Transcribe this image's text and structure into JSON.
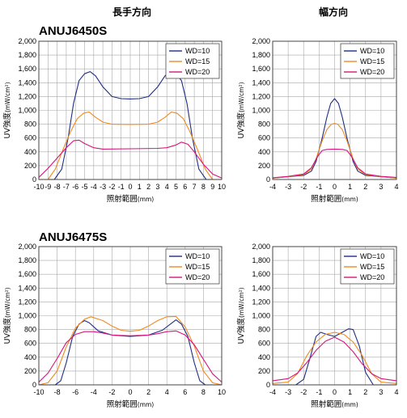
{
  "headers": {
    "long": "長手方向",
    "width": "幅方向"
  },
  "colors": {
    "WD10": "#1f2d86",
    "WD15": "#f08a1e",
    "WD20": "#d6157d",
    "grid": "#a8a8a8"
  },
  "common": {
    "ylabel_main": "UV強度",
    "ylabel_unit": "(mW/cm²)",
    "xlabel_main": "照射範囲",
    "xlabel_unit": "(mm)",
    "yticks": [
      "0",
      "200",
      "400",
      "600",
      "800",
      "1,000",
      "1,200",
      "1,400",
      "1,600",
      "1,800",
      "2,000"
    ]
  },
  "chart_data": [
    {
      "type": "line",
      "group": "ANUJ6450S",
      "title": "ANUJ6450S",
      "direction": "長手方向",
      "xlim": [
        -10,
        10
      ],
      "ylim": [
        0,
        2000
      ],
      "grid": true,
      "legend": "top-right",
      "xticks": [
        "-10",
        "-9",
        "-8",
        "-7",
        "-6",
        "-5",
        "-4",
        "-3",
        "-2",
        "-1",
        "0",
        "1",
        "2",
        "3",
        "4",
        "5",
        "6",
        "7",
        "8",
        "9",
        "10"
      ],
      "xtick_values": [
        -10,
        -9,
        -8,
        -7,
        -6,
        -5,
        -4,
        -3,
        -2,
        -1,
        0,
        1,
        2,
        3,
        4,
        5,
        6,
        7,
        8,
        9,
        10
      ],
      "series": [
        {
          "name": "WD=10",
          "color_key": "WD10",
          "points": [
            [
              -10,
              0
            ],
            [
              -8.3,
              0
            ],
            [
              -7.5,
              150
            ],
            [
              -6.8,
              600
            ],
            [
              -6.2,
              1100
            ],
            [
              -5.6,
              1430
            ],
            [
              -5,
              1530
            ],
            [
              -4.4,
              1560
            ],
            [
              -3.8,
              1500
            ],
            [
              -3,
              1340
            ],
            [
              -2,
              1200
            ],
            [
              -1,
              1170
            ],
            [
              0,
              1165
            ],
            [
              1,
              1170
            ],
            [
              2,
              1200
            ],
            [
              3,
              1340
            ],
            [
              3.8,
              1500
            ],
            [
              4.4,
              1560
            ],
            [
              5,
              1530
            ],
            [
              5.6,
              1430
            ],
            [
              6.2,
              1100
            ],
            [
              6.8,
              600
            ],
            [
              7.5,
              150
            ],
            [
              8.3,
              0
            ],
            [
              10,
              0
            ]
          ]
        },
        {
          "name": "WD=15",
          "color_key": "WD15",
          "points": [
            [
              -10,
              0
            ],
            [
              -9,
              0
            ],
            [
              -8.2,
              150
            ],
            [
              -7.3,
              450
            ],
            [
              -6.5,
              700
            ],
            [
              -5.8,
              880
            ],
            [
              -5.1,
              960
            ],
            [
              -4.5,
              975
            ],
            [
              -3.8,
              900
            ],
            [
              -3,
              830
            ],
            [
              -2,
              800
            ],
            [
              0,
              795
            ],
            [
              2,
              800
            ],
            [
              3,
              830
            ],
            [
              3.8,
              900
            ],
            [
              4.5,
              975
            ],
            [
              5.1,
              960
            ],
            [
              5.8,
              880
            ],
            [
              6.5,
              700
            ],
            [
              7.3,
              450
            ],
            [
              8.2,
              150
            ],
            [
              9,
              0
            ],
            [
              10,
              0
            ]
          ]
        },
        {
          "name": "WD=20",
          "color_key": "WD20",
          "points": [
            [
              -10,
              30
            ],
            [
              -9,
              160
            ],
            [
              -8,
              310
            ],
            [
              -7,
              460
            ],
            [
              -6.2,
              560
            ],
            [
              -5.6,
              570
            ],
            [
              -5,
              520
            ],
            [
              -4,
              460
            ],
            [
              -3,
              440
            ],
            [
              0,
              445
            ],
            [
              3,
              450
            ],
            [
              4,
              460
            ],
            [
              5,
              500
            ],
            [
              5.6,
              540
            ],
            [
              6.3,
              510
            ],
            [
              7,
              400
            ],
            [
              8,
              220
            ],
            [
              9,
              80
            ],
            [
              10,
              20
            ]
          ]
        }
      ]
    },
    {
      "type": "line",
      "group": "ANUJ6450S",
      "title": "",
      "direction": "幅方向",
      "xlim": [
        -4,
        4
      ],
      "ylim": [
        0,
        2000
      ],
      "grid": true,
      "legend": "top-right",
      "xticks": [
        "-4",
        "-3",
        "-2",
        "-1",
        "0",
        "1",
        "2",
        "3",
        "4"
      ],
      "xtick_values": [
        -4,
        -3,
        -2,
        -1,
        0,
        1,
        2,
        3,
        4
      ],
      "series": [
        {
          "name": "WD=10",
          "color_key": "WD10",
          "points": [
            [
              -4,
              20
            ],
            [
              -3,
              40
            ],
            [
              -2,
              60
            ],
            [
              -1.5,
              120
            ],
            [
              -1.2,
              260
            ],
            [
              -0.8,
              600
            ],
            [
              -0.5,
              900
            ],
            [
              -0.25,
              1100
            ],
            [
              0,
              1170
            ],
            [
              0.25,
              1100
            ],
            [
              0.5,
              900
            ],
            [
              0.8,
              600
            ],
            [
              1.2,
              260
            ],
            [
              1.5,
              120
            ],
            [
              2,
              60
            ],
            [
              3,
              40
            ],
            [
              4,
              20
            ]
          ]
        },
        {
          "name": "WD=15",
          "color_key": "WD15",
          "points": [
            [
              -4,
              20
            ],
            [
              -3,
              40
            ],
            [
              -2,
              70
            ],
            [
              -1.5,
              150
            ],
            [
              -1.2,
              300
            ],
            [
              -0.8,
              560
            ],
            [
              -0.5,
              720
            ],
            [
              -0.2,
              800
            ],
            [
              0,
              810
            ],
            [
              0.2,
              800
            ],
            [
              0.5,
              720
            ],
            [
              0.8,
              560
            ],
            [
              1.2,
              300
            ],
            [
              1.5,
              150
            ],
            [
              2,
              70
            ],
            [
              3,
              40
            ],
            [
              4,
              20
            ]
          ]
        },
        {
          "name": "WD=20",
          "color_key": "WD20",
          "points": [
            [
              -4,
              25
            ],
            [
              -3,
              45
            ],
            [
              -2,
              80
            ],
            [
              -1.5,
              170
            ],
            [
              -1.1,
              330
            ],
            [
              -0.8,
              420
            ],
            [
              -0.5,
              435
            ],
            [
              0,
              440
            ],
            [
              0.5,
              435
            ],
            [
              0.8,
              420
            ],
            [
              1.1,
              330
            ],
            [
              1.5,
              170
            ],
            [
              2,
              80
            ],
            [
              3,
              45
            ],
            [
              4,
              30
            ]
          ]
        }
      ]
    },
    {
      "type": "line",
      "group": "ANUJ6475S",
      "title": "ANUJ6475S",
      "direction": "長手方向",
      "xlim": [
        -10,
        10
      ],
      "ylim": [
        0,
        2000
      ],
      "grid": true,
      "legend": "top-right",
      "xticks": [
        "-10",
        "-8",
        "-6",
        "-4",
        "-2",
        "0",
        "2",
        "4",
        "6",
        "8",
        "10"
      ],
      "xtick_values": [
        -10,
        -8,
        -6,
        -4,
        -2,
        0,
        2,
        4,
        6,
        8,
        10
      ],
      "series": [
        {
          "name": "WD=10",
          "color_key": "WD10",
          "points": [
            [
              -10,
              0
            ],
            [
              -8.2,
              0
            ],
            [
              -7.6,
              60
            ],
            [
              -7,
              320
            ],
            [
              -6.3,
              700
            ],
            [
              -5.6,
              880
            ],
            [
              -5,
              930
            ],
            [
              -4.5,
              900
            ],
            [
              -3.5,
              780
            ],
            [
              -2,
              720
            ],
            [
              0,
              700
            ],
            [
              2,
              720
            ],
            [
              3.5,
              790
            ],
            [
              4.5,
              890
            ],
            [
              5,
              940
            ],
            [
              5.6,
              880
            ],
            [
              6.3,
              700
            ],
            [
              7,
              320
            ],
            [
              7.6,
              60
            ],
            [
              8.2,
              0
            ],
            [
              10,
              0
            ]
          ]
        },
        {
          "name": "WD=15",
          "color_key": "WD15",
          "points": [
            [
              -10,
              0
            ],
            [
              -9,
              30
            ],
            [
              -8,
              200
            ],
            [
              -7,
              550
            ],
            [
              -6,
              820
            ],
            [
              -5,
              950
            ],
            [
              -4.3,
              985
            ],
            [
              -3,
              930
            ],
            [
              -2,
              850
            ],
            [
              -1,
              790
            ],
            [
              0,
              775
            ],
            [
              1,
              790
            ],
            [
              2,
              850
            ],
            [
              3,
              930
            ],
            [
              4,
              985
            ],
            [
              5,
              990
            ],
            [
              6,
              840
            ],
            [
              7,
              560
            ],
            [
              8,
              200
            ],
            [
              9,
              30
            ],
            [
              10,
              0
            ]
          ]
        },
        {
          "name": "WD=20",
          "color_key": "WD20",
          "points": [
            [
              -10,
              40
            ],
            [
              -9,
              170
            ],
            [
              -8,
              380
            ],
            [
              -7,
              610
            ],
            [
              -6,
              730
            ],
            [
              -5,
              770
            ],
            [
              -4,
              770
            ],
            [
              -3,
              750
            ],
            [
              -2,
              720
            ],
            [
              0,
              710
            ],
            [
              2,
              720
            ],
            [
              3,
              740
            ],
            [
              4,
              770
            ],
            [
              5,
              780
            ],
            [
              6,
              720
            ],
            [
              7,
              580
            ],
            [
              8,
              370
            ],
            [
              9,
              160
            ],
            [
              10,
              40
            ]
          ]
        }
      ]
    },
    {
      "type": "line",
      "group": "ANUJ6475S",
      "title": "",
      "direction": "幅方向",
      "xlim": [
        -4,
        4
      ],
      "ylim": [
        0,
        2000
      ],
      "grid": true,
      "legend": "top-right",
      "xticks": [
        "-4",
        "-3",
        "-2",
        "-1",
        "0",
        "1",
        "2",
        "3",
        "4"
      ],
      "xtick_values": [
        -4,
        -3,
        -2,
        -1,
        0,
        1,
        2,
        3,
        4
      ],
      "series": [
        {
          "name": "WD=10",
          "color_key": "WD10",
          "points": [
            [
              -4,
              0
            ],
            [
              -2.5,
              0
            ],
            [
              -2,
              80
            ],
            [
              -1.6,
              380
            ],
            [
              -1.2,
              700
            ],
            [
              -0.9,
              760
            ],
            [
              -0.5,
              730
            ],
            [
              0,
              700
            ],
            [
              0.5,
              760
            ],
            [
              0.9,
              810
            ],
            [
              1.2,
              800
            ],
            [
              1.6,
              560
            ],
            [
              2,
              180
            ],
            [
              2.5,
              0
            ],
            [
              4,
              0
            ]
          ]
        },
        {
          "name": "WD=15",
          "color_key": "WD15",
          "points": [
            [
              -4,
              20
            ],
            [
              -3,
              40
            ],
            [
              -2.4,
              160
            ],
            [
              -1.8,
              420
            ],
            [
              -1.2,
              620
            ],
            [
              -0.6,
              730
            ],
            [
              0,
              760
            ],
            [
              0.6,
              730
            ],
            [
              1.2,
              620
            ],
            [
              1.8,
              420
            ],
            [
              2.4,
              160
            ],
            [
              3,
              40
            ],
            [
              4,
              20
            ]
          ]
        },
        {
          "name": "WD=20",
          "color_key": "WD20",
          "points": [
            [
              -4,
              60
            ],
            [
              -3,
              90
            ],
            [
              -2.4,
              170
            ],
            [
              -1.8,
              320
            ],
            [
              -1.2,
              500
            ],
            [
              -0.6,
              630
            ],
            [
              0,
              690
            ],
            [
              0.6,
              620
            ],
            [
              1.2,
              480
            ],
            [
              1.8,
              300
            ],
            [
              2.4,
              160
            ],
            [
              3,
              90
            ],
            [
              4,
              60
            ]
          ]
        }
      ]
    }
  ]
}
